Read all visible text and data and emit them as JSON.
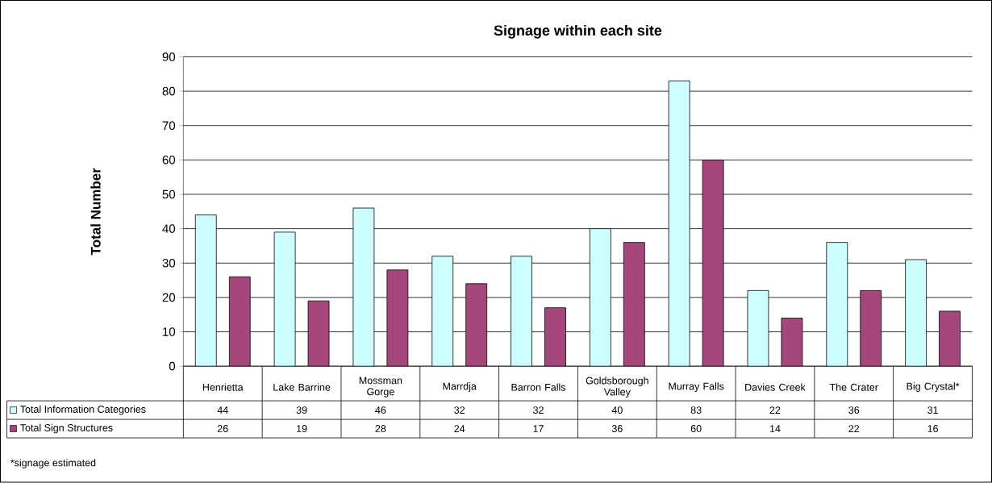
{
  "chart_data": {
    "type": "bar",
    "title": "**Signage within each site**",
    "ylabel": "**Total Number**",
    "categories": [
      "Henrietta",
      "Lake Barrine",
      "Mossman Gorge",
      "Marrdja",
      "Barron Falls",
      "Goldsborough Valley",
      "Murray Falls",
      "Davies Creek",
      "The Crater",
      "Big Crystal*"
    ],
    "series": [
      {
        "name": "Total Information Categories",
        "color": "#ccffff",
        "values": [
          44,
          39,
          46,
          32,
          32,
          40,
          83,
          22,
          36,
          31
        ]
      },
      {
        "name": "Total Sign Structures",
        "color": "#a5477a",
        "values": [
          26,
          19,
          28,
          24,
          17,
          36,
          60,
          14,
          22,
          16
        ]
      }
    ],
    "ylim": [
      0,
      90
    ],
    "yticks": [
      0,
      10,
      20,
      30,
      40,
      50,
      60,
      70,
      80,
      90
    ],
    "grid": "y",
    "legend": "bottom",
    "data_labels": true,
    "annotations": [
      "*signage estimated"
    ]
  }
}
